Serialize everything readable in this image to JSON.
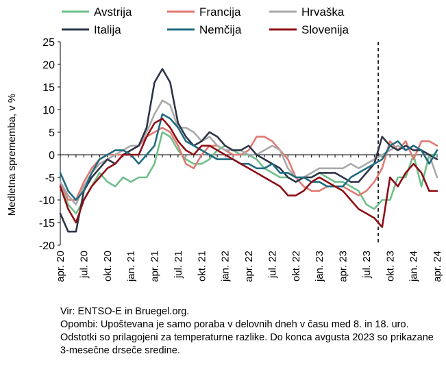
{
  "chart_data": {
    "type": "line",
    "ylabel": "Medletna sprememba, v %",
    "ylim": [
      -20,
      25
    ],
    "yticks": [
      -20,
      -15,
      -10,
      -5,
      0,
      5,
      10,
      15,
      20,
      25
    ],
    "x_start": "2020-04",
    "n_months": 49,
    "xtick_labels": [
      {
        "label": "apr. 20",
        "month_index": 0
      },
      {
        "label": "jul. 20",
        "month_index": 3
      },
      {
        "label": "okt. 20",
        "month_index": 6
      },
      {
        "label": "jan. 21",
        "month_index": 9
      },
      {
        "label": "apr. 21",
        "month_index": 12
      },
      {
        "label": "jul. 21",
        "month_index": 15
      },
      {
        "label": "okt. 21",
        "month_index": 18
      },
      {
        "label": "jan. 22",
        "month_index": 21
      },
      {
        "label": "apr. 22",
        "month_index": 24
      },
      {
        "label": "jul. 22",
        "month_index": 27
      },
      {
        "label": "okt. 22",
        "month_index": 30
      },
      {
        "label": "jan. 23",
        "month_index": 33
      },
      {
        "label": "apr. 23",
        "month_index": 36
      },
      {
        "label": "jul. 23",
        "month_index": 39
      },
      {
        "label": "okt. 23",
        "month_index": 42
      },
      {
        "label": "jan. 24",
        "month_index": 45
      },
      {
        "label": "apr. 24",
        "month_index": 48
      }
    ],
    "vline_month_index": 40.5,
    "legend_position": "top",
    "grid": false,
    "series": [
      {
        "name": "Avstrija",
        "color": "#6fbf8a",
        "values": [
          -7,
          -11,
          -13,
          -10,
          -7,
          -4,
          -6,
          -7,
          -5,
          -6,
          -5,
          -5,
          -2,
          5,
          4,
          1,
          -1,
          -2,
          -2,
          -1,
          1,
          2,
          1,
          0,
          0,
          -1,
          -3,
          -4,
          -5,
          -5,
          -6,
          -5,
          -5,
          -4,
          -5,
          -6,
          -6,
          -7,
          -8,
          -11,
          -12,
          -10,
          -10,
          -5,
          -5,
          0,
          -7,
          0,
          0
        ]
      },
      {
        "name": "Francija",
        "color": "#e07a72",
        "values": [
          -6,
          -10,
          -10,
          -6,
          -3,
          -1,
          0,
          0,
          0,
          1,
          2,
          4,
          5,
          6,
          5,
          2,
          -2,
          -3,
          0,
          2,
          2,
          1,
          0,
          0,
          1,
          4,
          4,
          3,
          1,
          -1,
          -5,
          -7,
          -8,
          -8,
          -7,
          -7,
          -7,
          -8,
          -9,
          -8,
          -6,
          -3,
          3,
          1,
          3,
          -1,
          3,
          3,
          2
        ]
      },
      {
        "name": "Hrvaška",
        "color": "#a9a9a9",
        "values": [
          -6,
          -9,
          -11,
          -7,
          -4,
          -2,
          -1,
          0,
          1,
          2,
          2,
          5,
          9,
          12,
          11,
          6,
          6,
          5,
          3,
          4,
          2,
          1,
          1,
          1,
          0,
          0,
          1,
          2,
          1,
          -3,
          -5,
          -5,
          -4,
          -3,
          -3,
          -3,
          -3,
          -2,
          -3,
          -2,
          -1,
          0,
          1,
          2,
          1,
          2,
          1,
          0,
          -5
        ]
      },
      {
        "name": "Italija",
        "color": "#2e3548",
        "values": [
          -13,
          -17,
          -17,
          -8,
          -5,
          -3,
          -1,
          -2,
          0,
          1,
          2,
          6,
          16,
          19,
          16,
          7,
          4,
          2,
          3,
          5,
          4,
          2,
          1,
          1,
          2,
          0,
          -1,
          -2,
          -3,
          -5,
          -6,
          -5,
          -5,
          -4,
          -4,
          -4,
          -5,
          -6,
          -6,
          -4,
          -2,
          4,
          2,
          1,
          2,
          1,
          1,
          0,
          -1
        ]
      },
      {
        "name": "Nemčija",
        "color": "#1f6b80",
        "values": [
          -4,
          -8,
          -10,
          -8,
          -4,
          -1,
          0,
          1,
          1,
          0,
          -2,
          0,
          2,
          9,
          8,
          6,
          3,
          2,
          1,
          0,
          -1,
          -1,
          -1,
          -2,
          -2,
          -3,
          -3,
          -2,
          -4,
          -4,
          -5,
          -5,
          -6,
          -6,
          -7,
          -7,
          -7,
          -5,
          -4,
          -3,
          -2,
          -1,
          2,
          3,
          1,
          2,
          1,
          -2,
          1
        ]
      },
      {
        "name": "Slovenija",
        "color": "#8e0f16",
        "values": [
          -7,
          -12,
          -15,
          -10,
          -7,
          -5,
          -3,
          -2,
          0,
          0,
          0,
          4,
          7,
          8,
          6,
          3,
          1,
          0,
          2,
          2,
          1,
          0,
          -1,
          -2,
          -3,
          -4,
          -5,
          -6,
          -7,
          -9,
          -9,
          -8,
          -6,
          -5,
          -6,
          -7,
          -8,
          -10,
          -12,
          -13,
          -14,
          -16,
          -5,
          -7,
          -4,
          -2,
          -4,
          -8,
          -8
        ]
      }
    ]
  },
  "notes": {
    "source": "Vir: ENTSO-E in Bruegel.org.",
    "remarks": "Opombi: Upoštevana je samo poraba v delovnih dneh v času med 8. in 18. uro. Odstotki so prilagojeni za temperaturne razlike. Do konca avgusta 2023 so prikazane 3-mesečne drseče sredine."
  }
}
